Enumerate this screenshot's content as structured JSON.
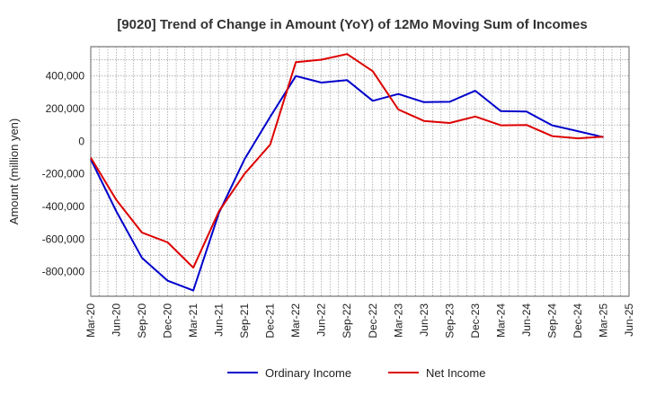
{
  "chart_data": {
    "type": "line",
    "title": "[9020]  Trend of Change in Amount (YoY) of 12Mo Moving Sum of Incomes",
    "xlabel": "",
    "ylabel": "Amount (million yen)",
    "ylim": [
      -950000,
      580000
    ],
    "yticks": [
      -800000,
      -600000,
      -400000,
      -200000,
      0,
      200000,
      400000
    ],
    "ytick_labels": [
      "-800,000",
      "-600,000",
      "-400,000",
      "-200,000",
      "0",
      "200,000",
      "400,000"
    ],
    "x_ticks": [
      "Mar-20",
      "Jun-20",
      "Sep-20",
      "Dec-20",
      "Mar-21",
      "Jun-21",
      "Sep-21",
      "Dec-21",
      "Mar-22",
      "Jun-22",
      "Sep-22",
      "Dec-22",
      "Mar-23",
      "Jun-23",
      "Sep-23",
      "Dec-23",
      "Mar-24",
      "Jun-24",
      "Sep-24",
      "Dec-24",
      "Mar-25",
      "Jun-25"
    ],
    "grid": true,
    "legend_position": "bottom-center",
    "series": [
      {
        "name": "Ordinary Income",
        "color": "#0000cc",
        "values": [
          -110000,
          -430000,
          -715000,
          -855000,
          -915000,
          -440000,
          -110000,
          150000,
          400000,
          360000,
          375000,
          248000,
          290000,
          240000,
          242000,
          310000,
          185000,
          182000,
          98000,
          62000,
          25000
        ]
      },
      {
        "name": "Net Income",
        "color": "#dd0000",
        "values": [
          -100000,
          -360000,
          -560000,
          -620000,
          -775000,
          -430000,
          -200000,
          -20000,
          485000,
          500000,
          535000,
          430000,
          195000,
          125000,
          112000,
          152000,
          98000,
          100000,
          32000,
          18000,
          28000
        ]
      }
    ]
  }
}
